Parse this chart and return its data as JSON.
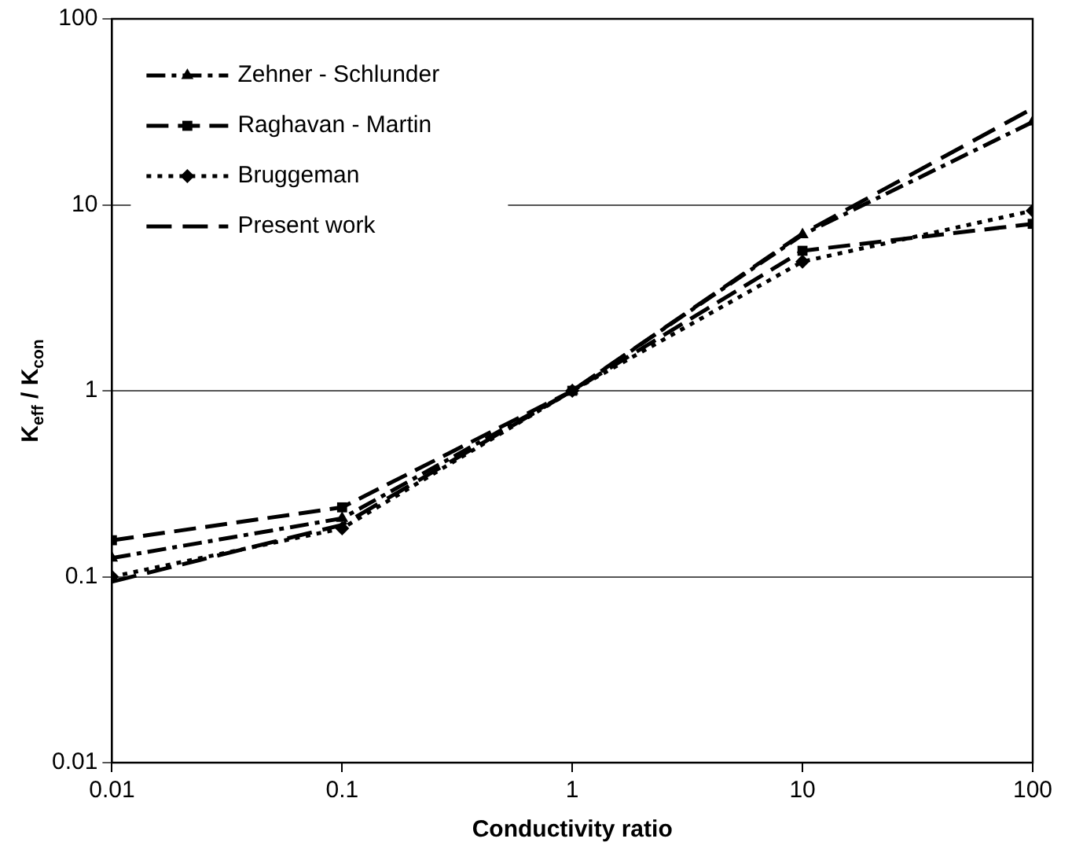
{
  "chart_data": {
    "type": "line",
    "xlabel": "Conductivity ratio",
    "ylabel": "K$_{eff}$ / K$_{con}$",
    "log": "xy",
    "xlim": [
      0.01,
      100
    ],
    "xticks": [
      0.01,
      0.1,
      1,
      10,
      100
    ],
    "ylim": [
      0.01,
      100
    ],
    "yticks": [
      0.01,
      0.1,
      1,
      10,
      100
    ],
    "grid": "y",
    "legend": "top left",
    "x": [
      0.01,
      0.1,
      1,
      10,
      100
    ],
    "series": [
      {
        "name": "Zehner - Schlunder",
        "color": "#000000",
        "marker": "triangle",
        "line_style": "dashed",
        "values": [
          0.126,
          0.206,
          1,
          6.9,
          27.9
        ]
      },
      {
        "name": "Raghavan - Martin",
        "color": "#000000",
        "marker": "square",
        "line_style": "dashed",
        "values": [
          0.157,
          0.236,
          1,
          5.66,
          7.9
        ]
      },
      {
        "name": "Bruggeman",
        "color": "#000000",
        "marker": "diamond",
        "line_style": "dotted",
        "values": [
          0.1,
          0.182,
          1,
          4.95,
          9.3
        ]
      },
      {
        "name": "Present work",
        "color": "#000000",
        "marker": "none",
        "line_style": "dashed",
        "values": [
          0.094,
          0.19,
          1,
          7,
          33
        ]
      }
    ]
  }
}
